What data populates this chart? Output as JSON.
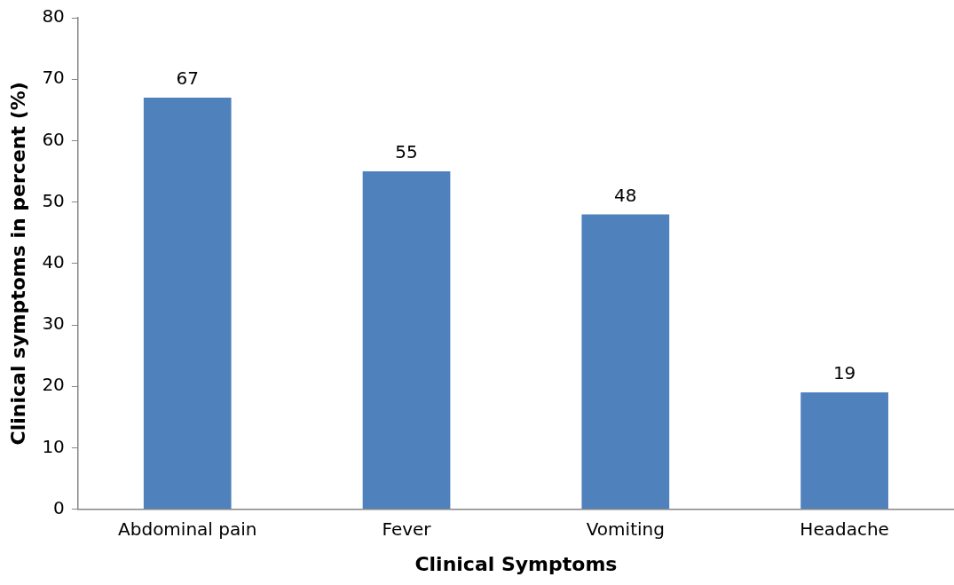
{
  "chart_data": {
    "type": "bar",
    "xlabel": "Clinical Symptoms",
    "ylabel": "Clinical symptoms in percent (%)",
    "categories": [
      "Abdominal pain",
      "Fever",
      "Vomiting",
      "Headache"
    ],
    "values": [
      67,
      55,
      48,
      19
    ],
    "color": "#4f81bd",
    "ylim": [
      0,
      80
    ],
    "yticks": [
      0,
      10,
      20,
      30,
      40,
      50,
      60,
      70,
      80
    ],
    "grid": false,
    "data_labels": true,
    "legend": false
  }
}
